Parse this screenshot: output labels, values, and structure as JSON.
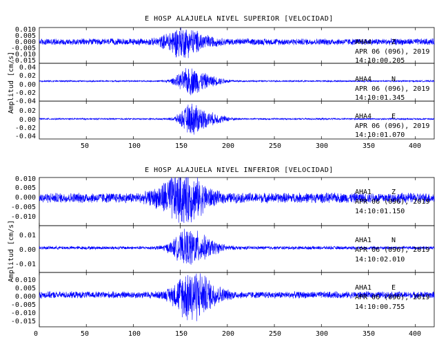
{
  "chart_data": [
    {
      "type": "line",
      "title": "E HOSP ALAJUELA NIVEL SUPERIOR [VELOCIDAD]",
      "ylabel": "Amplitud [cm/s]",
      "xlim": [
        0,
        420
      ],
      "x_ticks": [
        "50",
        "100",
        "150",
        "200",
        "250",
        "300",
        "350",
        "400"
      ],
      "trace_color": "#0000ff",
      "panels": [
        {
          "station": "AHA4",
          "component": "Z",
          "date": "APR 06 (096), 2019",
          "time": "14:10:00.205",
          "ylim": [
            -0.018,
            0.012
          ],
          "y_ticks": [
            "0.010",
            "0.005",
            "0.000",
            "-0.005",
            "-0.010",
            "-0.015"
          ],
          "envelope": {
            "noise": 0.003,
            "peak": 0.011,
            "peak_x": 150,
            "spread": 12
          }
        },
        {
          "station": "AHA4",
          "component": "N",
          "date": "APR 06 (096), 2019",
          "time": "14:10:01.345",
          "ylim": [
            -0.045,
            0.04
          ],
          "y_ticks": [
            "0.04",
            "0.02",
            "0.00",
            "-0.02",
            "-0.04"
          ],
          "envelope": {
            "noise": 0.002,
            "peak": 0.03,
            "peak_x": 160,
            "spread": 10
          }
        },
        {
          "station": "AHA4",
          "component": "E",
          "date": "APR 06 (096), 2019",
          "time": "14:10:01.070",
          "ylim": [
            -0.045,
            0.04
          ],
          "y_ticks": [
            "0.02",
            "0.00",
            "-0.02",
            "-0.04"
          ],
          "envelope": {
            "noise": 0.002,
            "peak": 0.035,
            "peak_x": 162,
            "spread": 9
          }
        }
      ]
    },
    {
      "type": "line",
      "title": "E HOSP ALAJUELA NIVEL INFERIOR [VELOCIDAD]",
      "ylabel": "Amplitud [cm/s]",
      "xlim": [
        0,
        420
      ],
      "x_ticks": [
        "0",
        "50",
        "100",
        "150",
        "200",
        "250",
        "300",
        "350",
        "400"
      ],
      "trace_color": "#0000ff",
      "panels": [
        {
          "station": "AHA1",
          "component": "Z",
          "date": "APR 06 (096), 2019",
          "time": "14:10:01.150",
          "ylim": [
            -0.015,
            0.011
          ],
          "y_ticks": [
            "0.010",
            "0.005",
            "0.000",
            "-0.005",
            "-0.010"
          ],
          "envelope": {
            "noise": 0.003,
            "peak": 0.012,
            "peak_x": 148,
            "spread": 15
          }
        },
        {
          "station": "AHA1",
          "component": "N",
          "date": "APR 06 (096), 2019",
          "time": "14:10:02.010",
          "ylim": [
            -0.02,
            0.018
          ],
          "y_ticks": [
            "0.01",
            "0.00",
            "-0.01"
          ],
          "envelope": {
            "noise": 0.0015,
            "peak": 0.014,
            "peak_x": 158,
            "spread": 12
          }
        },
        {
          "station": "AHA1",
          "component": "E",
          "date": "APR 06 (096), 2019",
          "time": "14:10:00.755",
          "ylim": [
            -0.017,
            0.012
          ],
          "y_ticks": [
            "0.010",
            "0.005",
            "0.000",
            "-0.005",
            "-0.010",
            "-0.015"
          ],
          "envelope": {
            "noise": 0.002,
            "peak": 0.013,
            "peak_x": 160,
            "spread": 12
          }
        }
      ]
    }
  ]
}
